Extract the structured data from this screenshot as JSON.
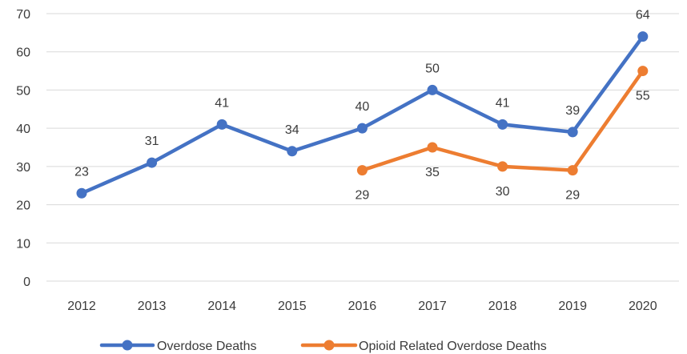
{
  "chart_data": {
    "type": "line",
    "categories": [
      "2012",
      "2013",
      "2014",
      "2015",
      "2016",
      "2017",
      "2018",
      "2019",
      "2020"
    ],
    "ylim": [
      0,
      70
    ],
    "yticks": [
      0,
      10,
      20,
      30,
      40,
      50,
      60,
      70
    ],
    "grid": true,
    "legend_position": "bottom",
    "series": [
      {
        "name": "Overdose Deaths",
        "color": "#4472C4",
        "values": [
          23,
          31,
          41,
          34,
          40,
          50,
          41,
          39,
          64
        ],
        "label_position": "above"
      },
      {
        "name": "Opioid Related Overdose Deaths",
        "color": "#ED7D31",
        "values": [
          null,
          null,
          null,
          null,
          29,
          35,
          30,
          29,
          55
        ],
        "label_position": "below"
      }
    ]
  }
}
